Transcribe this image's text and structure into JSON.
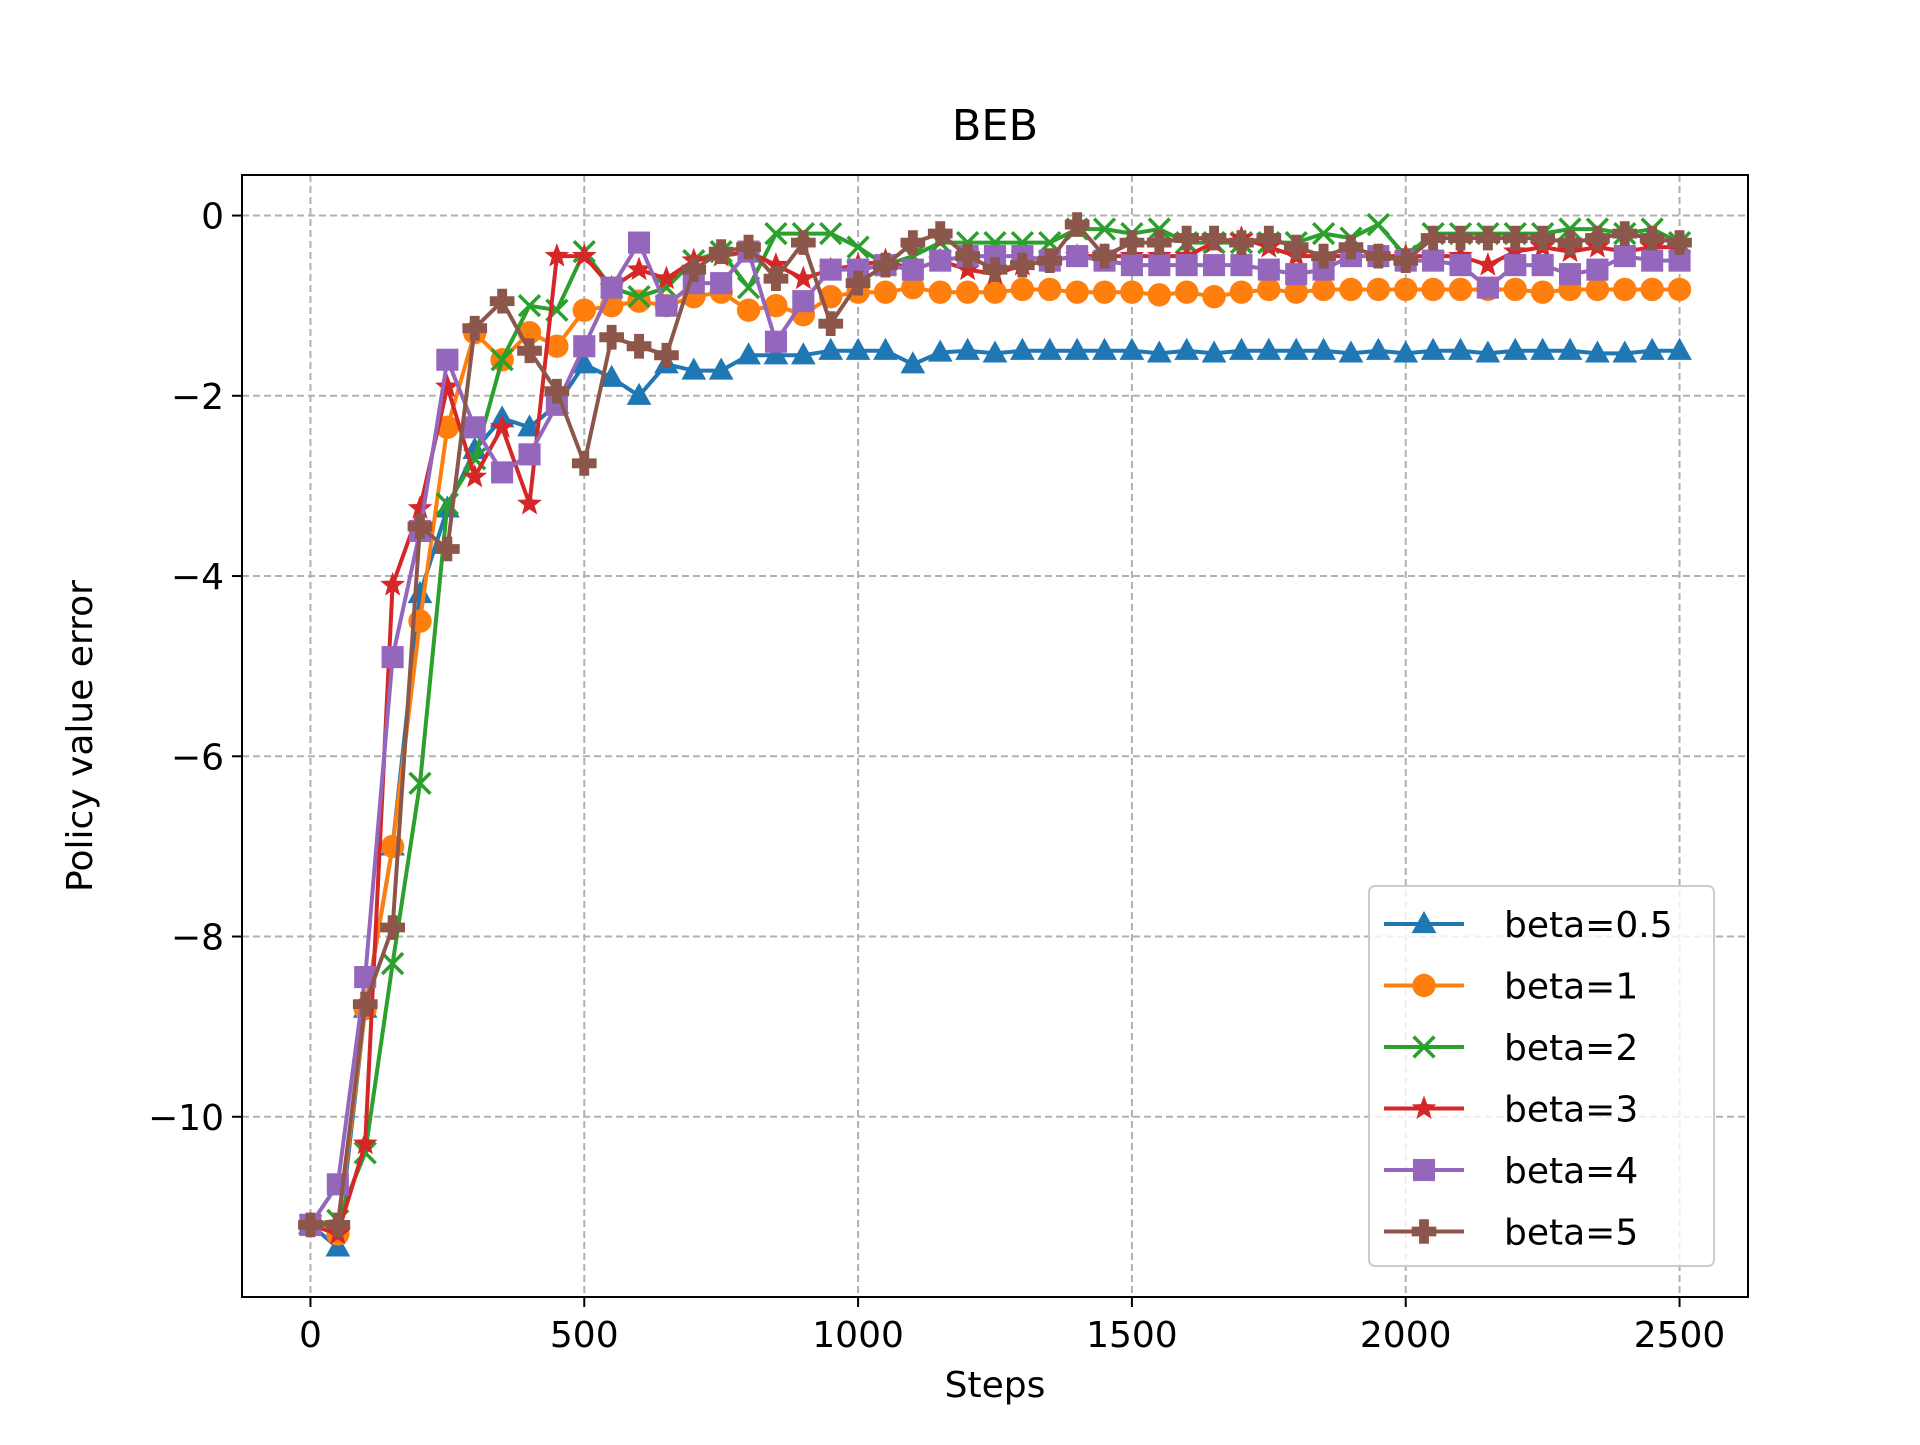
{
  "chart_data": {
    "type": "line",
    "title": "BEB",
    "xlabel": "Steps",
    "ylabel": "Policy value error",
    "xlim": [
      -125,
      2625
    ],
    "ylim": [
      -12,
      0.45
    ],
    "xticks": [
      0,
      500,
      1000,
      1500,
      2000,
      2500
    ],
    "yticks": [
      0,
      -2,
      -4,
      -6,
      -8,
      -10
    ],
    "xtick_labels": [
      "0",
      "500",
      "1000",
      "1500",
      "2000",
      "2500"
    ],
    "ytick_labels": [
      "0",
      "−2",
      "−4",
      "−6",
      "−8",
      "−10"
    ],
    "grid": true,
    "legend_position": "lower right",
    "x": [
      0,
      50,
      100,
      150,
      200,
      250,
      300,
      350,
      400,
      450,
      500,
      550,
      600,
      650,
      700,
      750,
      800,
      850,
      900,
      950,
      1000,
      1050,
      1100,
      1150,
      1200,
      1250,
      1300,
      1350,
      1400,
      1450,
      1500,
      1550,
      1600,
      1650,
      1700,
      1750,
      1800,
      1850,
      1900,
      1950,
      2000,
      2050,
      2100,
      2150,
      2200,
      2250,
      2300,
      2350,
      2400,
      2450,
      2500
    ],
    "series": [
      {
        "name": "beta=0.5",
        "color": "#1f77b4",
        "marker": "triangle",
        "values": [
          -11.2,
          -11.45,
          -8.8,
          -7.0,
          -4.2,
          -3.25,
          -2.6,
          -2.25,
          -2.35,
          -2.1,
          -1.65,
          -1.8,
          -2.0,
          -1.65,
          -1.72,
          -1.72,
          -1.55,
          -1.55,
          -1.55,
          -1.5,
          -1.5,
          -1.5,
          -1.65,
          -1.52,
          -1.5,
          -1.53,
          -1.5,
          -1.5,
          -1.5,
          -1.5,
          -1.5,
          -1.53,
          -1.5,
          -1.53,
          -1.5,
          -1.5,
          -1.5,
          -1.5,
          -1.53,
          -1.5,
          -1.53,
          -1.5,
          -1.5,
          -1.53,
          -1.5,
          -1.5,
          -1.5,
          -1.53,
          -1.53,
          -1.5,
          -1.5
        ]
      },
      {
        "name": "beta=1",
        "color": "#ff7f0e",
        "marker": "circle",
        "values": [
          -11.2,
          -11.3,
          -8.8,
          -7.0,
          -4.5,
          -2.35,
          -1.3,
          -1.6,
          -1.3,
          -1.45,
          -1.05,
          -1.0,
          -0.95,
          -1.0,
          -0.9,
          -0.85,
          -1.05,
          -1.0,
          -1.1,
          -0.9,
          -0.85,
          -0.85,
          -0.8,
          -0.85,
          -0.85,
          -0.85,
          -0.82,
          -0.82,
          -0.85,
          -0.85,
          -0.85,
          -0.88,
          -0.85,
          -0.9,
          -0.85,
          -0.82,
          -0.85,
          -0.82,
          -0.82,
          -0.82,
          -0.82,
          -0.82,
          -0.82,
          -0.82,
          -0.82,
          -0.85,
          -0.82,
          -0.82,
          -0.82,
          -0.82,
          -0.82
        ]
      },
      {
        "name": "beta=2",
        "color": "#2ca02c",
        "marker": "x",
        "values": [
          -11.2,
          -11.15,
          -10.4,
          -8.3,
          -6.3,
          -3.2,
          -2.7,
          -1.6,
          -1.0,
          -1.05,
          -0.4,
          -0.8,
          -0.9,
          -0.8,
          -0.5,
          -0.4,
          -0.8,
          -0.2,
          -0.2,
          -0.2,
          -0.35,
          -0.55,
          -0.45,
          -0.3,
          -0.3,
          -0.3,
          -0.3,
          -0.3,
          -0.15,
          -0.15,
          -0.2,
          -0.15,
          -0.3,
          -0.3,
          -0.3,
          -0.3,
          -0.3,
          -0.2,
          -0.25,
          -0.1,
          -0.45,
          -0.2,
          -0.2,
          -0.2,
          -0.2,
          -0.2,
          -0.15,
          -0.15,
          -0.2,
          -0.15,
          -0.3
        ]
      },
      {
        "name": "beta=3",
        "color": "#d62728",
        "marker": "star",
        "values": [
          -11.2,
          -11.3,
          -10.3,
          -4.1,
          -3.25,
          -1.9,
          -2.9,
          -2.35,
          -3.2,
          -0.45,
          -0.45,
          -0.8,
          -0.6,
          -0.7,
          -0.5,
          -0.45,
          -0.4,
          -0.55,
          -0.7,
          -0.6,
          -0.55,
          -0.5,
          -0.6,
          -0.5,
          -0.6,
          -0.65,
          -0.55,
          -0.5,
          -0.45,
          -0.45,
          -0.45,
          -0.45,
          -0.45,
          -0.3,
          -0.25,
          -0.35,
          -0.45,
          -0.45,
          -0.45,
          -0.45,
          -0.45,
          -0.45,
          -0.45,
          -0.55,
          -0.4,
          -0.35,
          -0.4,
          -0.35,
          -0.4,
          -0.35,
          -0.35
        ]
      },
      {
        "name": "beta=4",
        "color": "#9467bd",
        "marker": "square",
        "values": [
          -11.2,
          -10.75,
          -8.45,
          -4.9,
          -3.5,
          -1.6,
          -2.35,
          -2.85,
          -2.65,
          -2.1,
          -1.45,
          -0.8,
          -0.3,
          -1.0,
          -0.75,
          -0.75,
          -0.4,
          -1.4,
          -0.95,
          -0.6,
          -0.6,
          -0.55,
          -0.6,
          -0.5,
          -0.45,
          -0.45,
          -0.45,
          -0.5,
          -0.45,
          -0.5,
          -0.55,
          -0.55,
          -0.55,
          -0.55,
          -0.55,
          -0.6,
          -0.65,
          -0.6,
          -0.45,
          -0.45,
          -0.5,
          -0.5,
          -0.55,
          -0.8,
          -0.55,
          -0.55,
          -0.65,
          -0.6,
          -0.45,
          -0.5,
          -0.5
        ]
      },
      {
        "name": "beta=5",
        "color": "#8c564b",
        "marker": "plus",
        "values": [
          -11.2,
          -11.2,
          -8.75,
          -7.9,
          -3.45,
          -3.7,
          -1.25,
          -0.95,
          -1.5,
          -1.95,
          -2.75,
          -1.35,
          -1.45,
          -1.55,
          -0.6,
          -0.4,
          -0.35,
          -0.7,
          -0.3,
          -1.2,
          -0.75,
          -0.55,
          -0.3,
          -0.2,
          -0.45,
          -0.6,
          -0.55,
          -0.5,
          -0.1,
          -0.45,
          -0.3,
          -0.3,
          -0.25,
          -0.25,
          -0.3,
          -0.25,
          -0.35,
          -0.45,
          -0.35,
          -0.45,
          -0.5,
          -0.25,
          -0.25,
          -0.25,
          -0.25,
          -0.25,
          -0.3,
          -0.25,
          -0.2,
          -0.25,
          -0.3
        ]
      }
    ]
  }
}
